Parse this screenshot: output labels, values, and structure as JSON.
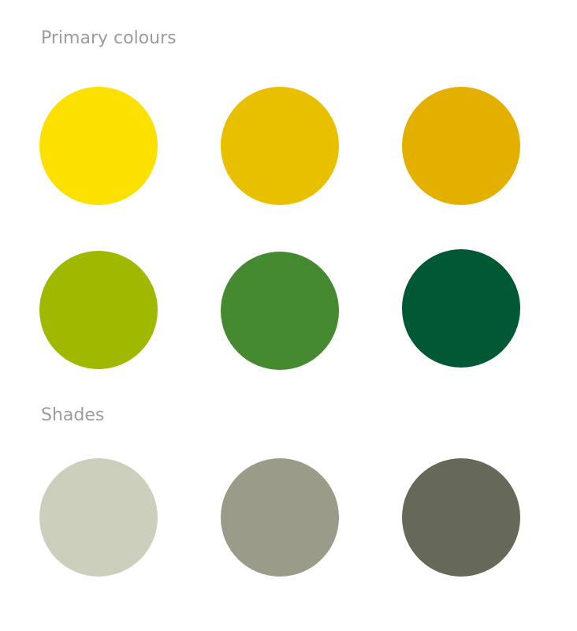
{
  "primary": {
    "title": "Primary colours",
    "swatches": [
      {
        "color": "#fbe000"
      },
      {
        "color": "#e9c000"
      },
      {
        "color": "#e4b000"
      },
      {
        "color": "#a0b800"
      },
      {
        "color": "#458a31"
      },
      {
        "color": "#005834"
      }
    ]
  },
  "shades": {
    "title": "Shades",
    "swatches": [
      {
        "color": "#cdcfbd"
      },
      {
        "color": "#9a9b88"
      },
      {
        "color": "#666959"
      }
    ]
  }
}
